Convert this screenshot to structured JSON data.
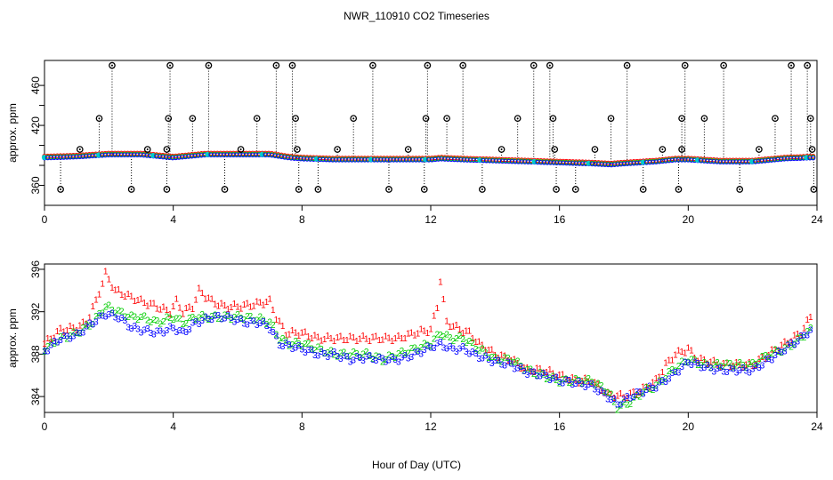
{
  "title": "NWR_110910  CO2 Timeseries",
  "xlabel": "Hour of Day (UTC)",
  "colors": {
    "series1": "#ff0000",
    "series2": "#00cd00",
    "series3": "#0000ff",
    "outlier": "#000000",
    "cyan": "#00cccc"
  },
  "chart_data": [
    {
      "type": "scatter",
      "panel": "top",
      "ylabel": "approx. ppm",
      "xlim": [
        0,
        24
      ],
      "ylim": [
        340,
        485
      ],
      "xticks": [
        0,
        4,
        8,
        12,
        16,
        20,
        24
      ],
      "yticks": [
        360,
        380,
        400,
        420,
        440,
        460
      ],
      "ytick_labels_shown": [
        "360",
        "420",
        "460"
      ],
      "baseline_trend": [
        [
          0,
          388
        ],
        [
          1,
          389
        ],
        [
          2,
          391
        ],
        [
          3,
          391
        ],
        [
          4,
          388
        ],
        [
          5,
          391
        ],
        [
          6,
          391
        ],
        [
          7,
          391
        ],
        [
          7.6,
          388
        ],
        [
          8,
          387
        ],
        [
          9,
          386
        ],
        [
          10,
          386
        ],
        [
          11,
          386
        ],
        [
          12,
          386
        ],
        [
          12.3,
          387
        ],
        [
          13,
          386
        ],
        [
          14,
          385
        ],
        [
          15,
          384
        ],
        [
          16,
          383
        ],
        [
          17,
          382
        ],
        [
          17.6,
          381
        ],
        [
          18,
          382
        ],
        [
          19,
          384
        ],
        [
          19.6,
          386
        ],
        [
          20,
          386
        ],
        [
          21,
          384
        ],
        [
          22,
          384
        ],
        [
          23,
          387
        ],
        [
          23.8,
          388
        ]
      ],
      "outlier_points": [
        [
          0.5,
          356
        ],
        [
          1.1,
          396
        ],
        [
          1.7,
          427
        ],
        [
          2.1,
          480
        ],
        [
          2.7,
          356
        ],
        [
          3.2,
          396
        ],
        [
          3.8,
          356
        ],
        [
          3.8,
          396
        ],
        [
          3.85,
          427
        ],
        [
          3.9,
          480
        ],
        [
          4.6,
          427
        ],
        [
          5.1,
          480
        ],
        [
          5.6,
          356
        ],
        [
          6.1,
          396
        ],
        [
          6.6,
          427
        ],
        [
          7.2,
          480
        ],
        [
          7.7,
          480
        ],
        [
          7.8,
          427
        ],
        [
          7.85,
          396
        ],
        [
          7.9,
          356
        ],
        [
          8.5,
          356
        ],
        [
          9.1,
          396
        ],
        [
          9.6,
          427
        ],
        [
          10.2,
          480
        ],
        [
          10.7,
          356
        ],
        [
          11.3,
          396
        ],
        [
          11.8,
          356
        ],
        [
          11.85,
          427
        ],
        [
          11.9,
          480
        ],
        [
          12.5,
          427
        ],
        [
          13.0,
          480
        ],
        [
          13.6,
          356
        ],
        [
          14.2,
          396
        ],
        [
          14.7,
          427
        ],
        [
          15.2,
          480
        ],
        [
          15.7,
          480
        ],
        [
          15.8,
          427
        ],
        [
          15.85,
          396
        ],
        [
          15.9,
          356
        ],
        [
          16.5,
          356
        ],
        [
          17.1,
          396
        ],
        [
          17.6,
          427
        ],
        [
          18.1,
          480
        ],
        [
          18.6,
          356
        ],
        [
          19.2,
          396
        ],
        [
          19.7,
          356
        ],
        [
          19.8,
          396
        ],
        [
          19.8,
          427
        ],
        [
          19.9,
          480
        ],
        [
          20.5,
          427
        ],
        [
          21.1,
          480
        ],
        [
          21.6,
          356
        ],
        [
          22.2,
          396
        ],
        [
          22.7,
          427
        ],
        [
          23.2,
          480
        ],
        [
          23.7,
          480
        ],
        [
          23.8,
          427
        ],
        [
          23.85,
          396
        ],
        [
          23.9,
          356
        ]
      ]
    },
    {
      "type": "scatter",
      "panel": "bottom",
      "ylabel": "approx. ppm",
      "xlim": [
        0,
        24
      ],
      "ylim": [
        382.5,
        396.5
      ],
      "xticks": [
        0,
        4,
        8,
        12,
        16,
        20,
        24
      ],
      "yticks": [
        384,
        388,
        392,
        396
      ],
      "series": [
        {
          "name": "1",
          "symbol": "1",
          "points": [
            [
              0,
              389
            ],
            [
              0.5,
              390.3
            ],
            [
              1,
              390.5
            ],
            [
              1.3,
              391
            ],
            [
              1.6,
              393
            ],
            [
              1.9,
              395.6
            ],
            [
              2.2,
              394
            ],
            [
              2.6,
              393.5
            ],
            [
              3,
              393
            ],
            [
              3.5,
              392.5
            ],
            [
              3.9,
              392
            ],
            [
              4.1,
              393
            ],
            [
              4.3,
              392
            ],
            [
              4.6,
              392.5
            ],
            [
              4.8,
              394
            ],
            [
              5.2,
              393
            ],
            [
              5.6,
              392.5
            ],
            [
              6,
              392.5
            ],
            [
              6.5,
              392.7
            ],
            [
              7,
              393
            ],
            [
              7.2,
              391.5
            ],
            [
              7.5,
              390
            ],
            [
              8,
              390
            ],
            [
              8.5,
              389.5
            ],
            [
              9,
              389.5
            ],
            [
              9.5,
              389.5
            ],
            [
              10,
              389.5
            ],
            [
              10.5,
              389.5
            ],
            [
              11,
              389.5
            ],
            [
              11.5,
              390
            ],
            [
              12,
              390.3
            ],
            [
              12.2,
              392.5
            ],
            [
              12.3,
              395
            ],
            [
              12.5,
              391
            ],
            [
              12.8,
              390.5
            ],
            [
              13.2,
              390
            ],
            [
              13.5,
              389
            ],
            [
              14,
              388
            ],
            [
              14.5,
              387.5
            ],
            [
              15,
              386.5
            ],
            [
              15.5,
              386.5
            ],
            [
              16,
              386
            ],
            [
              16.5,
              385.5
            ],
            [
              17,
              385.5
            ],
            [
              17.5,
              384.2
            ],
            [
              18,
              384
            ],
            [
              18.5,
              384.5
            ],
            [
              19,
              385.5
            ],
            [
              19.3,
              387
            ],
            [
              19.6,
              388
            ],
            [
              20,
              388.5
            ],
            [
              20.3,
              387.5
            ],
            [
              20.7,
              387.3
            ],
            [
              21,
              387
            ],
            [
              21.5,
              387
            ],
            [
              22,
              387
            ],
            [
              22.5,
              388
            ],
            [
              23,
              389
            ],
            [
              23.5,
              390
            ],
            [
              23.8,
              391.5
            ]
          ]
        },
        {
          "name": "2",
          "symbol": "2",
          "points": [
            [
              0,
              388.5
            ],
            [
              0.5,
              389.5
            ],
            [
              1,
              390
            ],
            [
              1.5,
              391
            ],
            [
              1.9,
              392.5
            ],
            [
              2.3,
              392
            ],
            [
              2.7,
              391.5
            ],
            [
              3,
              391.5
            ],
            [
              3.5,
              391
            ],
            [
              4,
              391.5
            ],
            [
              4.3,
              391
            ],
            [
              4.7,
              391.5
            ],
            [
              5.2,
              391.5
            ],
            [
              5.7,
              391.5
            ],
            [
              6.2,
              391.5
            ],
            [
              6.7,
              391.3
            ],
            [
              7,
              391
            ],
            [
              7.3,
              389.5
            ],
            [
              7.6,
              389
            ],
            [
              8,
              389
            ],
            [
              8.5,
              388.5
            ],
            [
              9,
              388
            ],
            [
              9.5,
              388
            ],
            [
              10,
              388
            ],
            [
              10.5,
              387.5
            ],
            [
              11,
              388
            ],
            [
              11.5,
              388.5
            ],
            [
              12,
              389
            ],
            [
              12.3,
              390
            ],
            [
              12.6,
              389.5
            ],
            [
              13,
              389.5
            ],
            [
              13.5,
              388.5
            ],
            [
              14,
              387.5
            ],
            [
              14.5,
              387.5
            ],
            [
              15,
              386.5
            ],
            [
              15.5,
              386
            ],
            [
              16,
              385.5
            ],
            [
              16.5,
              385.5
            ],
            [
              17,
              385.5
            ],
            [
              17.5,
              384.5
            ],
            [
              17.8,
              383
            ],
            [
              18.2,
              383.5
            ],
            [
              18.6,
              384.5
            ],
            [
              19,
              385
            ],
            [
              19.5,
              386.5
            ],
            [
              20,
              387.5
            ],
            [
              20.5,
              387
            ],
            [
              21,
              387
            ],
            [
              21.5,
              387
            ],
            [
              22,
              387
            ],
            [
              22.5,
              388
            ],
            [
              23,
              388.5
            ],
            [
              23.5,
              389.5
            ],
            [
              23.8,
              390.5
            ]
          ]
        },
        {
          "name": "3",
          "symbol": "3",
          "points": [
            [
              0,
              388.3
            ],
            [
              0.5,
              389.5
            ],
            [
              1,
              389.8
            ],
            [
              1.5,
              391
            ],
            [
              1.9,
              391.8
            ],
            [
              2.3,
              391.5
            ],
            [
              2.7,
              390.5
            ],
            [
              3,
              390.3
            ],
            [
              3.5,
              390
            ],
            [
              4,
              390.5
            ],
            [
              4.3,
              390
            ],
            [
              4.7,
              391
            ],
            [
              5.2,
              391.5
            ],
            [
              5.7,
              391.5
            ],
            [
              6.2,
              391
            ],
            [
              6.7,
              391
            ],
            [
              7,
              390.5
            ],
            [
              7.3,
              389
            ],
            [
              7.6,
              388.8
            ],
            [
              8,
              388.5
            ],
            [
              8.5,
              388
            ],
            [
              9,
              388
            ],
            [
              9.5,
              387.5
            ],
            [
              10,
              387.7
            ],
            [
              10.5,
              387.5
            ],
            [
              11,
              387.5
            ],
            [
              11.5,
              388
            ],
            [
              12,
              388.7
            ],
            [
              12.3,
              389
            ],
            [
              12.6,
              388.5
            ],
            [
              13,
              388.5
            ],
            [
              13.5,
              387.8
            ],
            [
              14,
              387.3
            ],
            [
              14.5,
              387
            ],
            [
              15,
              386.3
            ],
            [
              15.5,
              386
            ],
            [
              16,
              385.5
            ],
            [
              16.5,
              385.3
            ],
            [
              17,
              385
            ],
            [
              17.5,
              384
            ],
            [
              17.8,
              383.3
            ],
            [
              18.2,
              384
            ],
            [
              18.6,
              384.5
            ],
            [
              19,
              385
            ],
            [
              19.5,
              386
            ],
            [
              20,
              387.3
            ],
            [
              20.5,
              386.8
            ],
            [
              21,
              386.5
            ],
            [
              21.5,
              386.5
            ],
            [
              22,
              386.5
            ],
            [
              22.5,
              387.5
            ],
            [
              23,
              388.5
            ],
            [
              23.5,
              389.5
            ],
            [
              23.8,
              390.3
            ]
          ]
        }
      ]
    }
  ]
}
